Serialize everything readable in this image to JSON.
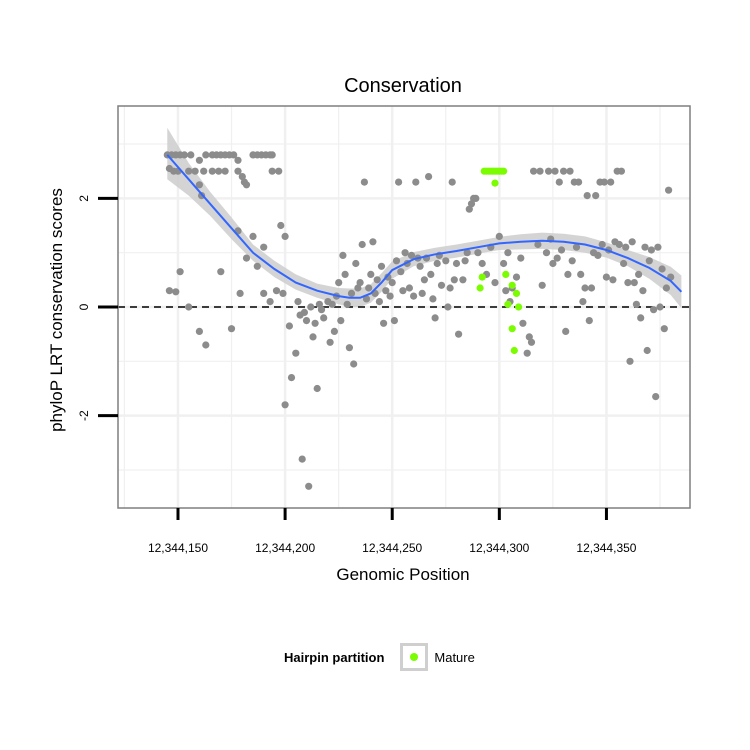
{
  "chart_data": {
    "type": "scatter",
    "title": "Conservation",
    "xlabel": "Genomic Position",
    "ylabel": "phyloP LRT conservation scores",
    "xlim": [
      12344122,
      12344389
    ],
    "ylim": [
      -3.7,
      3.7
    ],
    "x_ticks": [
      12344150,
      12344200,
      12344250,
      12344300,
      12344350
    ],
    "x_tick_labels": [
      "12,344,150",
      "12,344,200",
      "12,344,250",
      "12,344,300",
      "12,344,350"
    ],
    "y_ticks": [
      -2,
      0,
      2
    ],
    "y_tick_labels": [
      "-2",
      "0",
      "2"
    ],
    "grid": true,
    "reference_line": {
      "y": 0,
      "style": "dashed"
    },
    "legend": {
      "title": "Hairpin partition",
      "position": "bottom",
      "entries": [
        {
          "label": "Mature",
          "color": "#7CFC00"
        }
      ]
    },
    "colors": {
      "other": "#8c8c8c",
      "mature": "#7CFC00",
      "smooth": "#3366FF",
      "band": "#cccccc"
    },
    "series": [
      {
        "name": "",
        "color": "#8c8c8c",
        "points": [
          [
            12344145,
            2.8
          ],
          [
            12344147,
            2.8
          ],
          [
            12344149,
            2.8
          ],
          [
            12344151,
            2.8
          ],
          [
            12344153,
            2.8
          ],
          [
            12344156,
            2.8
          ],
          [
            12344163,
            2.8
          ],
          [
            12344166,
            2.8
          ],
          [
            12344168,
            2.8
          ],
          [
            12344170,
            2.8
          ],
          [
            12344172,
            2.8
          ],
          [
            12344174,
            2.8
          ],
          [
            12344176,
            2.8
          ],
          [
            12344185,
            2.8
          ],
          [
            12344187,
            2.8
          ],
          [
            12344189,
            2.8
          ],
          [
            12344191,
            2.8
          ],
          [
            12344193,
            2.8
          ],
          [
            12344194,
            2.8
          ],
          [
            12344146,
            2.55
          ],
          [
            12344148,
            2.5
          ],
          [
            12344150,
            2.5
          ],
          [
            12344155,
            2.5
          ],
          [
            12344158,
            2.5
          ],
          [
            12344162,
            2.5
          ],
          [
            12344166,
            2.5
          ],
          [
            12344169,
            2.5
          ],
          [
            12344172,
            2.5
          ],
          [
            12344178,
            2.5
          ],
          [
            12344160,
            2.7
          ],
          [
            12344178,
            2.7
          ],
          [
            12344180,
            2.4
          ],
          [
            12344181,
            2.3
          ],
          [
            12344182,
            2.25
          ],
          [
            12344160,
            2.25
          ],
          [
            12344161,
            2.05
          ],
          [
            12344194,
            2.5
          ],
          [
            12344197,
            2.5
          ],
          [
            12344178,
            1.4
          ],
          [
            12344185,
            1.3
          ],
          [
            12344198,
            1.5
          ],
          [
            12344190,
            1.1
          ],
          [
            12344200,
            1.3
          ],
          [
            12344146,
            0.3
          ],
          [
            12344149,
            0.28
          ],
          [
            12344151,
            0.65
          ],
          [
            12344155,
            0.0
          ],
          [
            12344160,
            -0.45
          ],
          [
            12344163,
            -0.7
          ],
          [
            12344170,
            0.65
          ],
          [
            12344175,
            -0.4
          ],
          [
            12344179,
            0.25
          ],
          [
            12344182,
            0.9
          ],
          [
            12344187,
            0.75
          ],
          [
            12344190,
            0.25
          ],
          [
            12344193,
            0.1
          ],
          [
            12344196,
            0.3
          ],
          [
            12344199,
            0.25
          ],
          [
            12344200,
            -1.8
          ],
          [
            12344202,
            -0.35
          ],
          [
            12344203,
            -1.3
          ],
          [
            12344205,
            -0.85
          ],
          [
            12344206,
            0.1
          ],
          [
            12344207,
            -0.15
          ],
          [
            12344208,
            -2.8
          ],
          [
            12344209,
            -0.1
          ],
          [
            12344210,
            -0.25
          ],
          [
            12344211,
            -3.3
          ],
          [
            12344212,
            0.0
          ],
          [
            12344213,
            -0.55
          ],
          [
            12344214,
            -0.3
          ],
          [
            12344215,
            -1.5
          ],
          [
            12344216,
            0.05
          ],
          [
            12344217,
            -0.05
          ],
          [
            12344218,
            -0.2
          ],
          [
            12344220,
            0.1
          ],
          [
            12344221,
            -0.65
          ],
          [
            12344222,
            0.05
          ],
          [
            12344223,
            -0.45
          ],
          [
            12344224,
            0.2
          ],
          [
            12344225,
            0.45
          ],
          [
            12344226,
            -0.25
          ],
          [
            12344227,
            0.95
          ],
          [
            12344228,
            0.6
          ],
          [
            12344229,
            0.05
          ],
          [
            12344230,
            -0.75
          ],
          [
            12344231,
            0.25
          ],
          [
            12344232,
            -1.05
          ],
          [
            12344233,
            0.8
          ],
          [
            12344234,
            0.35
          ],
          [
            12344235,
            0.45
          ],
          [
            12344236,
            1.15
          ],
          [
            12344237,
            2.3
          ],
          [
            12344238,
            0.15
          ],
          [
            12344239,
            0.35
          ],
          [
            12344240,
            0.6
          ],
          [
            12344241,
            1.2
          ],
          [
            12344242,
            0.25
          ],
          [
            12344243,
            0.5
          ],
          [
            12344244,
            0.1
          ],
          [
            12344245,
            0.75
          ],
          [
            12344246,
            -0.3
          ],
          [
            12344247,
            0.3
          ],
          [
            12344248,
            0.55
          ],
          [
            12344249,
            0.2
          ],
          [
            12344250,
            0.45
          ],
          [
            12344251,
            -0.25
          ],
          [
            12344252,
            0.85
          ],
          [
            12344253,
            2.3
          ],
          [
            12344254,
            0.65
          ],
          [
            12344255,
            0.3
          ],
          [
            12344256,
            1.0
          ],
          [
            12344257,
            0.8
          ],
          [
            12344258,
            0.35
          ],
          [
            12344259,
            0.95
          ],
          [
            12344260,
            0.2
          ],
          [
            12344261,
            2.3
          ],
          [
            12344262,
            0.9
          ],
          [
            12344263,
            0.75
          ],
          [
            12344264,
            0.25
          ],
          [
            12344265,
            0.5
          ],
          [
            12344266,
            0.9
          ],
          [
            12344267,
            2.4
          ],
          [
            12344268,
            0.6
          ],
          [
            12344269,
            0.15
          ],
          [
            12344270,
            -0.2
          ],
          [
            12344271,
            0.8
          ],
          [
            12344272,
            0.95
          ],
          [
            12344273,
            0.4
          ],
          [
            12344275,
            0.85
          ],
          [
            12344276,
            0.0
          ],
          [
            12344277,
            0.35
          ],
          [
            12344278,
            2.3
          ],
          [
            12344279,
            0.5
          ],
          [
            12344280,
            0.8
          ],
          [
            12344281,
            -0.5
          ],
          [
            12344283,
            0.5
          ],
          [
            12344284,
            0.85
          ],
          [
            12344285,
            1.0
          ],
          [
            12344286,
            1.8
          ],
          [
            12344287,
            1.9
          ],
          [
            12344288,
            2.0
          ],
          [
            12344289,
            2.0
          ],
          [
            12344290,
            1.0
          ],
          [
            12344292,
            0.8
          ],
          [
            12344294,
            0.6
          ],
          [
            12344296,
            1.1
          ],
          [
            12344298,
            0.45
          ],
          [
            12344300,
            1.3
          ],
          [
            12344302,
            0.8
          ],
          [
            12344303,
            0.3
          ],
          [
            12344304,
            1.0
          ],
          [
            12344305,
            0.1
          ],
          [
            12344306,
            0.35
          ],
          [
            12344308,
            0.55
          ],
          [
            12344310,
            0.9
          ],
          [
            12344311,
            -0.3
          ],
          [
            12344313,
            -0.85
          ],
          [
            12344314,
            -0.55
          ],
          [
            12344315,
            -0.65
          ],
          [
            12344316,
            2.5
          ],
          [
            12344318,
            1.15
          ],
          [
            12344319,
            2.5
          ],
          [
            12344320,
            0.4
          ],
          [
            12344322,
            1.0
          ],
          [
            12344323,
            2.5
          ],
          [
            12344324,
            1.25
          ],
          [
            12344325,
            0.8
          ],
          [
            12344326,
            2.5
          ],
          [
            12344327,
            0.9
          ],
          [
            12344328,
            2.3
          ],
          [
            12344329,
            1.05
          ],
          [
            12344330,
            2.5
          ],
          [
            12344331,
            -0.45
          ],
          [
            12344332,
            0.6
          ],
          [
            12344333,
            2.5
          ],
          [
            12344334,
            0.85
          ],
          [
            12344335,
            2.3
          ],
          [
            12344336,
            1.1
          ],
          [
            12344337,
            2.3
          ],
          [
            12344338,
            0.6
          ],
          [
            12344339,
            0.1
          ],
          [
            12344340,
            0.35
          ],
          [
            12344341,
            2.05
          ],
          [
            12344342,
            -0.25
          ],
          [
            12344343,
            0.35
          ],
          [
            12344344,
            1.0
          ],
          [
            12344345,
            2.05
          ],
          [
            12344346,
            0.95
          ],
          [
            12344347,
            2.3
          ],
          [
            12344348,
            1.15
          ],
          [
            12344349,
            2.3
          ],
          [
            12344350,
            0.55
          ],
          [
            12344351,
            1.05
          ],
          [
            12344352,
            2.3
          ],
          [
            12344353,
            0.5
          ],
          [
            12344354,
            1.2
          ],
          [
            12344355,
            2.5
          ],
          [
            12344356,
            1.15
          ],
          [
            12344357,
            2.5
          ],
          [
            12344358,
            0.8
          ],
          [
            12344359,
            1.1
          ],
          [
            12344360,
            0.45
          ],
          [
            12344361,
            -1.0
          ],
          [
            12344362,
            1.2
          ],
          [
            12344363,
            0.45
          ],
          [
            12344364,
            0.05
          ],
          [
            12344365,
            0.6
          ],
          [
            12344366,
            -0.2
          ],
          [
            12344367,
            0.3
          ],
          [
            12344368,
            1.1
          ],
          [
            12344369,
            -0.8
          ],
          [
            12344370,
            0.85
          ],
          [
            12344371,
            1.05
          ],
          [
            12344372,
            -0.05
          ],
          [
            12344373,
            -1.65
          ],
          [
            12344374,
            1.1
          ],
          [
            12344375,
            0.0
          ],
          [
            12344376,
            0.7
          ],
          [
            12344377,
            -0.4
          ],
          [
            12344378,
            0.35
          ],
          [
            12344379,
            2.15
          ],
          [
            12344380,
            0.55
          ]
        ]
      },
      {
        "name": "Mature",
        "color": "#7CFC00",
        "points": [
          [
            12344293,
            2.5
          ],
          [
            12344294,
            2.5
          ],
          [
            12344295,
            2.5
          ],
          [
            12344296,
            2.5
          ],
          [
            12344297,
            2.5
          ],
          [
            12344298,
            2.5
          ],
          [
            12344299,
            2.5
          ],
          [
            12344300,
            2.5
          ],
          [
            12344301,
            2.5
          ],
          [
            12344302,
            2.5
          ],
          [
            12344298,
            2.28
          ],
          [
            12344291,
            0.35
          ],
          [
            12344292,
            0.55
          ],
          [
            12344303,
            0.6
          ],
          [
            12344304,
            0.05
          ],
          [
            12344306,
            0.4
          ],
          [
            12344306,
            -0.4
          ],
          [
            12344307,
            -0.8
          ],
          [
            12344308,
            0.25
          ],
          [
            12344309,
            0.0
          ]
        ]
      }
    ],
    "smooth": {
      "type": "loess",
      "x": [
        12344145,
        12344155,
        12344165,
        12344175,
        12344185,
        12344195,
        12344205,
        12344215,
        12344225,
        12344230,
        12344235,
        12344240,
        12344245,
        12344250,
        12344260,
        12344270,
        12344280,
        12344290,
        12344300,
        12344310,
        12344320,
        12344330,
        12344340,
        12344350,
        12344360,
        12344370,
        12344380,
        12344385
      ],
      "y": [
        2.8,
        2.35,
        1.9,
        1.45,
        1.0,
        0.7,
        0.45,
        0.3,
        0.2,
        0.17,
        0.17,
        0.25,
        0.45,
        0.68,
        0.88,
        0.97,
        1.03,
        1.1,
        1.17,
        1.2,
        1.22,
        1.2,
        1.15,
        1.05,
        0.9,
        0.72,
        0.48,
        0.28
      ],
      "ci_lower": [
        2.35,
        2.05,
        1.68,
        1.25,
        0.85,
        0.55,
        0.32,
        0.17,
        0.05,
        0.0,
        0.0,
        0.08,
        0.28,
        0.52,
        0.75,
        0.85,
        0.91,
        0.98,
        1.05,
        1.06,
        1.07,
        1.05,
        1.0,
        0.91,
        0.75,
        0.52,
        0.22,
        -0.02
      ],
      "ci_upper": [
        3.3,
        2.65,
        2.12,
        1.65,
        1.15,
        0.85,
        0.6,
        0.43,
        0.35,
        0.34,
        0.34,
        0.42,
        0.62,
        0.84,
        1.01,
        1.09,
        1.15,
        1.22,
        1.29,
        1.34,
        1.37,
        1.35,
        1.3,
        1.19,
        1.05,
        0.92,
        0.74,
        0.58
      ]
    }
  }
}
